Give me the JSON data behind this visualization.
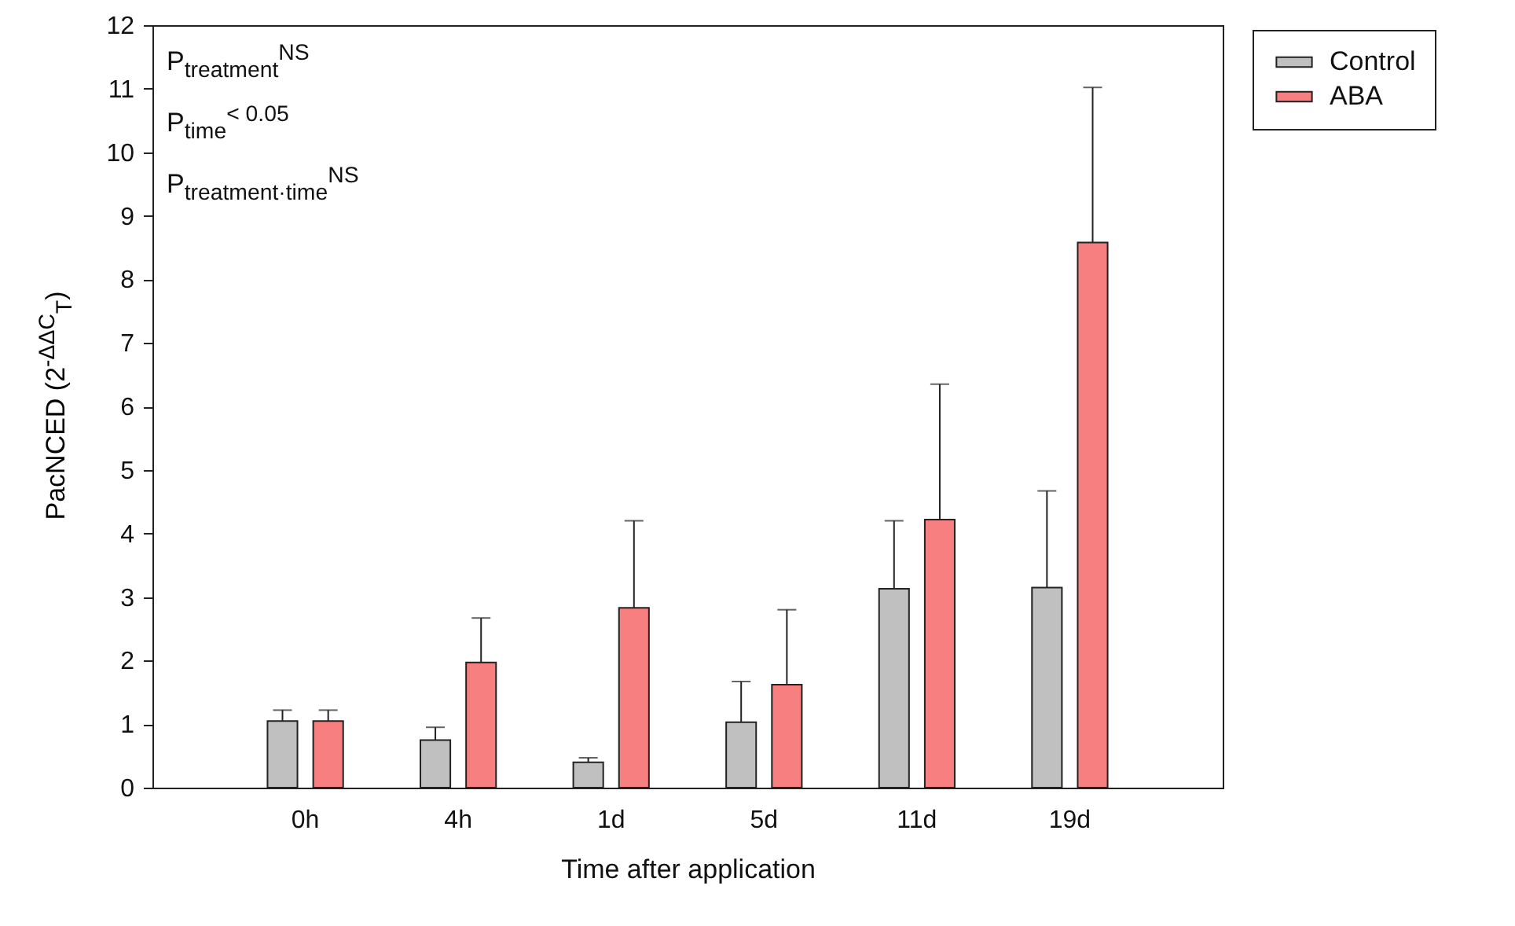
{
  "chart_data": {
    "type": "bar",
    "xlabel": "Time after application",
    "ylabel": "PacNCED (2$^{-ΔΔC}$$_{T}$)",
    "annotations": [
      "P$_{treatment}$$^{NS}$",
      "P$_{time}$$^{< 0.05}$",
      "P$_{treatment·time}$$^{NS}$"
    ],
    "categories": [
      "0h",
      "4h",
      "1d",
      "5d",
      "11d",
      "19d"
    ],
    "series": [
      {
        "name": "Control",
        "color": "#c0c0c0",
        "values": [
          1.05,
          0.75,
          0.4,
          1.03,
          3.13,
          3.15
        ],
        "errors": [
          [
            1.05,
            1.22
          ],
          [
            0.75,
            0.95
          ],
          [
            0.4,
            0.47
          ],
          [
            1.03,
            1.67
          ],
          [
            3.13,
            4.2
          ],
          [
            3.15,
            4.67
          ]
        ]
      },
      {
        "name": "ABA",
        "color": "#f77f7f",
        "values": [
          1.05,
          1.97,
          2.83,
          1.62,
          4.22,
          8.58
        ],
        "errors": [
          [
            1.05,
            1.22
          ],
          [
            1.97,
            2.67
          ],
          [
            2.83,
            4.2
          ],
          [
            1.62,
            2.8
          ],
          [
            4.22,
            6.35
          ],
          [
            8.58,
            11.02
          ]
        ]
      }
    ],
    "ylim": [
      0,
      12
    ],
    "yticks": [
      0,
      1,
      2,
      3,
      4,
      5,
      6,
      7,
      8,
      9,
      10,
      11,
      12
    ],
    "grid": false,
    "legend": "top right"
  }
}
